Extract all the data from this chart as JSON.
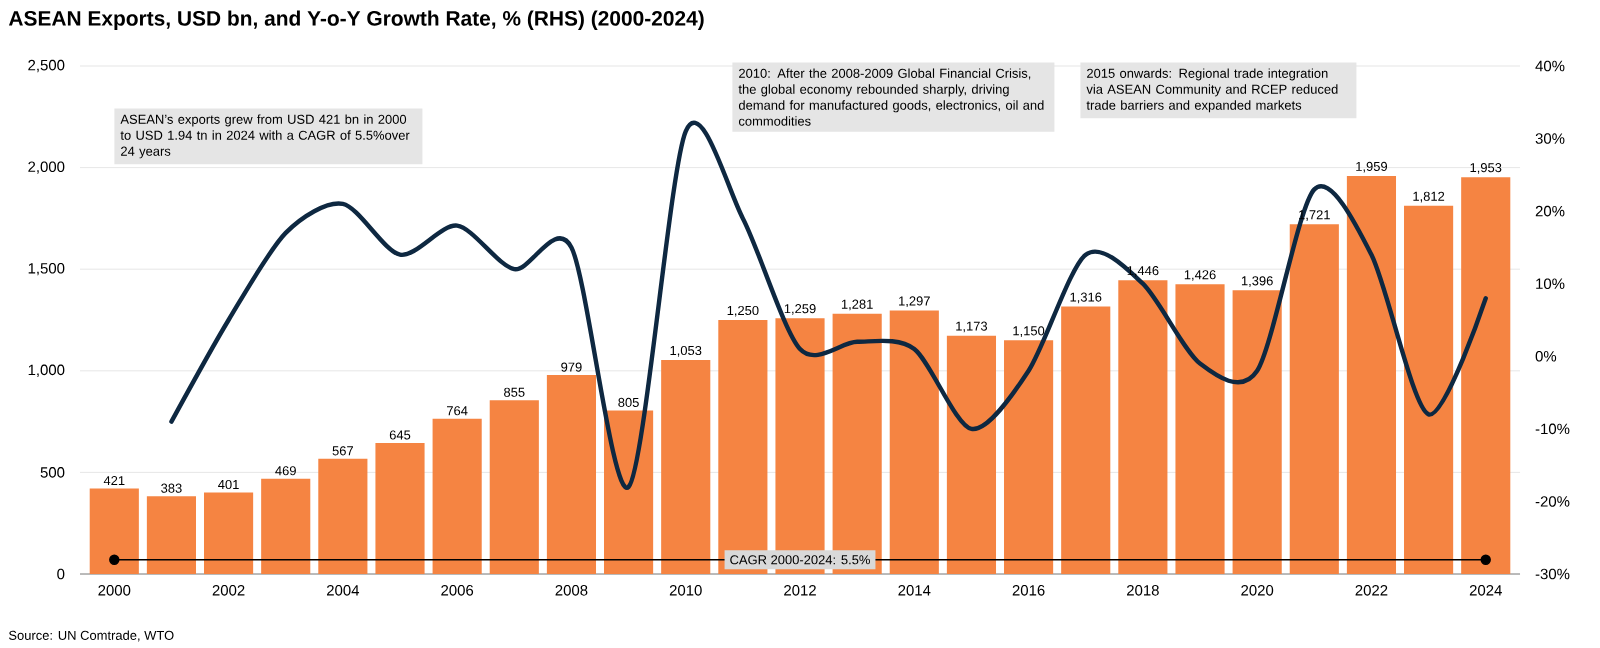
{
  "chart_data": {
    "type": "bar",
    "title": "ASEAN Exports, USD bn, and Y-o-Y Growth Rate, % (RHS) (2000-2024)",
    "x": [
      2000,
      2001,
      2002,
      2003,
      2004,
      2005,
      2006,
      2007,
      2008,
      2009,
      2010,
      2011,
      2012,
      2013,
      2014,
      2015,
      2016,
      2017,
      2018,
      2019,
      2020,
      2021,
      2022,
      2023,
      2024
    ],
    "xlim": [
      1999.4,
      2024.6
    ],
    "xticks": [
      2000,
      2002,
      2004,
      2006,
      2008,
      2010,
      2012,
      2014,
      2016,
      2018,
      2020,
      2022,
      2024
    ],
    "ylim": [
      0,
      2500
    ],
    "yticks": [
      0,
      500,
      {
        "value": 1000,
        "label": "1,000"
      },
      {
        "value": 1500,
        "label": "1,500"
      },
      {
        "value": 2000,
        "label": "2,000"
      },
      {
        "value": 2500,
        "label": "2,500"
      }
    ],
    "y2lim": [
      -30,
      40
    ],
    "y2ticks": [
      {
        "value": -30,
        "label": "-30%"
      },
      {
        "value": -20,
        "label": "-20%"
      },
      {
        "value": -10,
        "label": "-10%"
      },
      {
        "value": 0,
        "label": "0%"
      },
      {
        "value": 10,
        "label": "10%"
      },
      {
        "value": 20,
        "label": "20%"
      },
      {
        "value": 30,
        "label": "30%"
      },
      {
        "value": 40,
        "label": "40%"
      }
    ],
    "grid": "y",
    "series": [
      {
        "color": "#f58442",
        "values": [
          421,
          383,
          401,
          469,
          567,
          645,
          764,
          855,
          979,
          805,
          1053,
          1250,
          1259,
          1281,
          1297,
          1173,
          1150,
          1316,
          1446,
          1426,
          1396,
          1721,
          1959,
          1812,
          1953
        ],
        "value_labels": [
          "421",
          "383",
          "401",
          "469",
          "567",
          "645",
          "764",
          "855",
          "979",
          "805",
          "1,053",
          "1,250",
          "1,259",
          "1,281",
          "1,297",
          "1,173",
          "1,150",
          "1,316",
          "1,446",
          "1,426",
          "1,396",
          "1,721",
          "1,959",
          "1,812",
          "1,953"
        ]
      },
      {
        "type": "line",
        "axis": "y2",
        "color": "#0e2841",
        "x": [
          2001,
          2002,
          2003,
          2004,
          2005,
          2006,
          2007,
          2008,
          2009,
          2010,
          2011,
          2012,
          2013,
          2014,
          2015,
          2016,
          2017,
          2018,
          2019,
          2020,
          2021,
          2022,
          2023,
          2024
        ],
        "values": [
          -9,
          5,
          17,
          21,
          14,
          18,
          12,
          15,
          -18,
          31,
          19,
          1,
          2,
          1,
          -10,
          -2,
          14,
          10,
          -1,
          -2,
          23,
          14,
          -8,
          8
        ]
      },
      {
        "type": "line",
        "color": "#000000",
        "marker": "circle",
        "x": [
          2000,
          2024
        ],
        "values": [
          70,
          70
        ]
      }
    ],
    "annotations": [
      "ASEAN’s exports grew from USD 421 bn in 2000 to USD 1.94 tn in 2024 with a CAGR of 5.5%over 24 years",
      "2010: After the 2008-2009 Global Financial Crisis, the global economy rebounded sharply, driving demand for manufactured goods, electronics, oil and commodities",
      "2015 onwards: Regional trade integration via ASEAN Community and RCEP reduced trade barriers and expanded markets",
      {
        "text": "CAGR 2000-2024: 5.5%",
        "x": 2012,
        "y": 70
      },
      "Source: UN Comtrade, WTO"
    ]
  }
}
